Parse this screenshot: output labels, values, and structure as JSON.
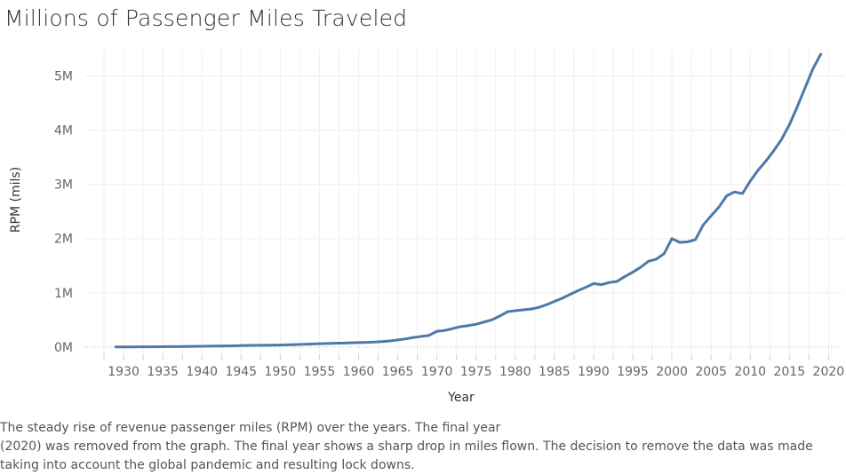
{
  "chart_data": {
    "type": "line",
    "title": "Millions of Passenger Miles Traveled",
    "xlabel": "Year",
    "ylabel": "RPM (mils)",
    "xlim": [
      1925,
      2022
    ],
    "ylim": [
      -150000,
      5500000
    ],
    "x_ticks": [
      1930,
      1935,
      1940,
      1945,
      1950,
      1955,
      1960,
      1965,
      1970,
      1975,
      1980,
      1985,
      1990,
      1995,
      2000,
      2005,
      2010,
      2015,
      2020
    ],
    "y_ticks": [
      0,
      1000000,
      2000000,
      3000000,
      4000000,
      5000000
    ],
    "y_tick_labels": [
      "0M",
      "1M",
      "2M",
      "3M",
      "4M",
      "5M"
    ],
    "grid": true,
    "color": "#4e79a7",
    "series": [
      {
        "x": [
          1929,
          1930,
          1931,
          1932,
          1933,
          1934,
          1935,
          1936,
          1937,
          1938,
          1939,
          1940,
          1941,
          1942,
          1943,
          1944,
          1945,
          1946,
          1947,
          1948,
          1949,
          1950,
          1951,
          1952,
          1953,
          1954,
          1955,
          1956,
          1957,
          1958,
          1959,
          1960,
          1961,
          1962,
          1963,
          1964,
          1965,
          1966,
          1967,
          1968,
          1969,
          1970,
          1971,
          1972,
          1973,
          1974,
          1975,
          1976,
          1977,
          1978,
          1979,
          1980,
          1981,
          1982,
          1983,
          1984,
          1985,
          1986,
          1987,
          1988,
          1989,
          1990,
          1991,
          1992,
          1993,
          1994,
          1995,
          1996,
          1997,
          1998,
          1999,
          2000,
          2001,
          2002,
          2003,
          2004,
          2005,
          2006,
          2007,
          2008,
          2009,
          2010,
          2011,
          2012,
          2013,
          2014,
          2015,
          2016,
          2017,
          2018,
          2019
        ],
        "values": [
          1000,
          2000,
          2500,
          3000,
          3500,
          4500,
          5500,
          7000,
          8500,
          10000,
          12000,
          14000,
          16000,
          18000,
          20000,
          22000,
          25000,
          30000,
          32000,
          33000,
          34000,
          36000,
          40000,
          45000,
          50000,
          55000,
          60000,
          65000,
          70000,
          72000,
          78000,
          82000,
          86000,
          92000,
          100000,
          112000,
          130000,
          150000,
          175000,
          195000,
          215000,
          290000,
          305000,
          340000,
          375000,
          395000,
          420000,
          460000,
          500000,
          570000,
          650000,
          670000,
          685000,
          700000,
          730000,
          780000,
          840000,
          900000,
          970000,
          1040000,
          1100000,
          1170000,
          1150000,
          1190000,
          1210000,
          1300000,
          1380000,
          1470000,
          1580000,
          1620000,
          1720000,
          2000000,
          1930000,
          1940000,
          1980000,
          2250000,
          2420000,
          2580000,
          2790000,
          2860000,
          2830000,
          3060000,
          3260000,
          3430000,
          3620000,
          3830000,
          4100000,
          4430000,
          4780000,
          5130000,
          5400000
        ]
      }
    ]
  },
  "caption": {
    "line1": "The steady rise of revenue passenger miles (RPM) over the years. The final year",
    "line2": "(2020) was removed from the graph. The final year shows a sharp drop in miles flown. The decision to remove the data was made",
    "line3": "taking into account the global pandemic and resulting lock downs."
  }
}
